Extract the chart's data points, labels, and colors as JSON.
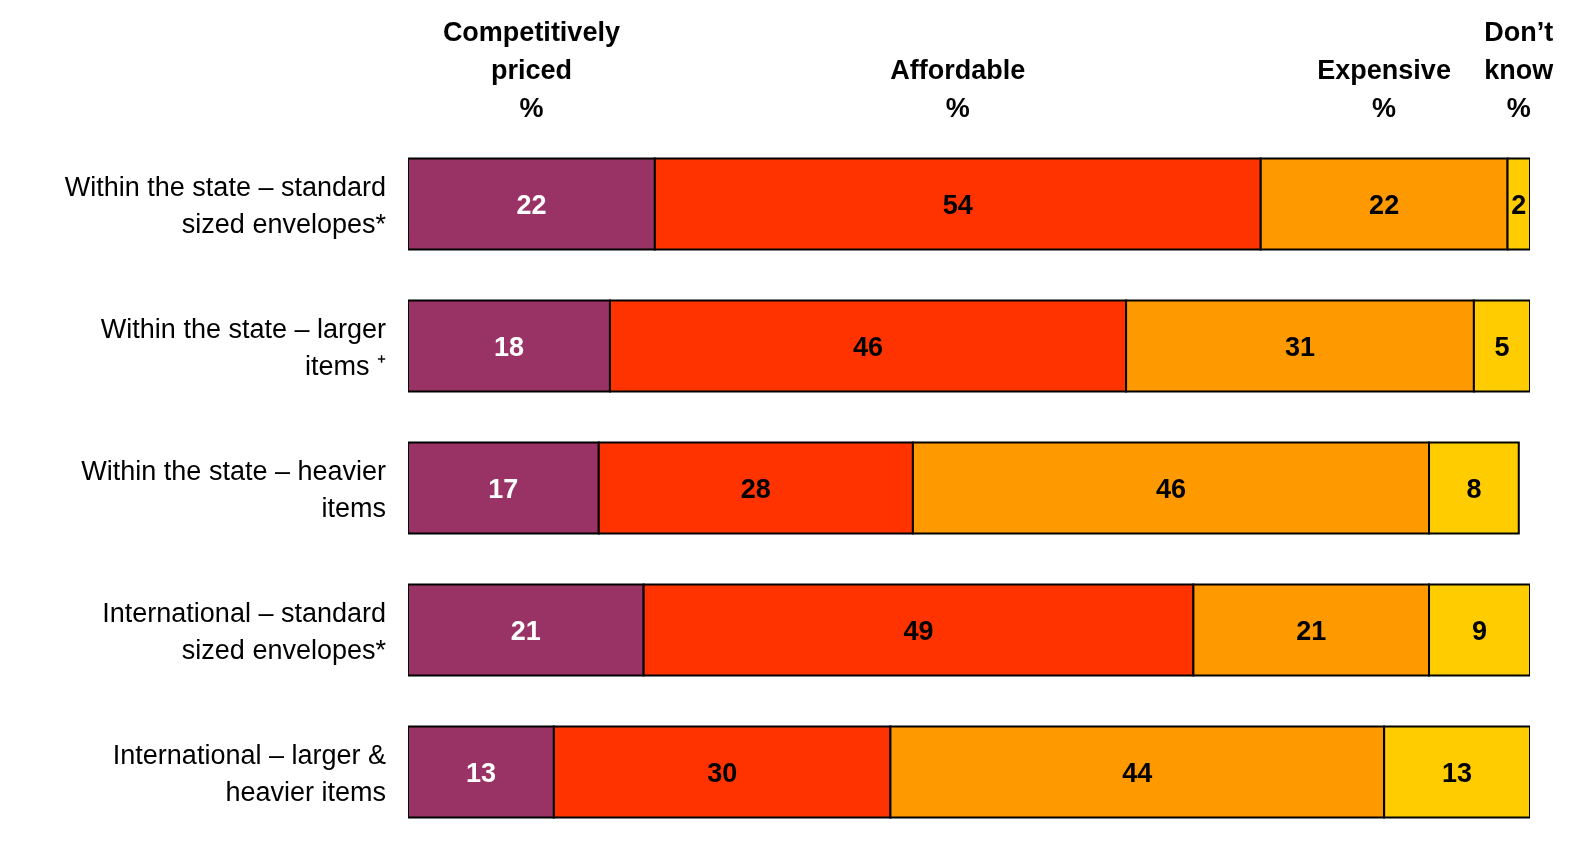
{
  "chart_data": {
    "type": "bar",
    "orientation": "horizontal",
    "stacked": true,
    "data_labels": true,
    "legend": "top",
    "categories": [
      "Within the state – standard sized envelopes*",
      "Within the state – larger items ⁺",
      "Within the state – heavier items",
      "International – standard sized envelopes*",
      "International – larger & heavier items"
    ],
    "series": [
      {
        "name": "Competitively priced %",
        "color": "#993366",
        "values": [
          22,
          18,
          17,
          21,
          13
        ]
      },
      {
        "name": "Affordable %",
        "color": "#ff3300",
        "values": [
          54,
          46,
          28,
          49,
          30
        ]
      },
      {
        "name": "Expensive %",
        "color": "#ff9900",
        "values": [
          22,
          31,
          46,
          21,
          44
        ]
      },
      {
        "name": "Don’t know %",
        "color": "#ffcc00",
        "values": [
          2,
          5,
          8,
          9,
          13
        ]
      }
    ]
  }
}
